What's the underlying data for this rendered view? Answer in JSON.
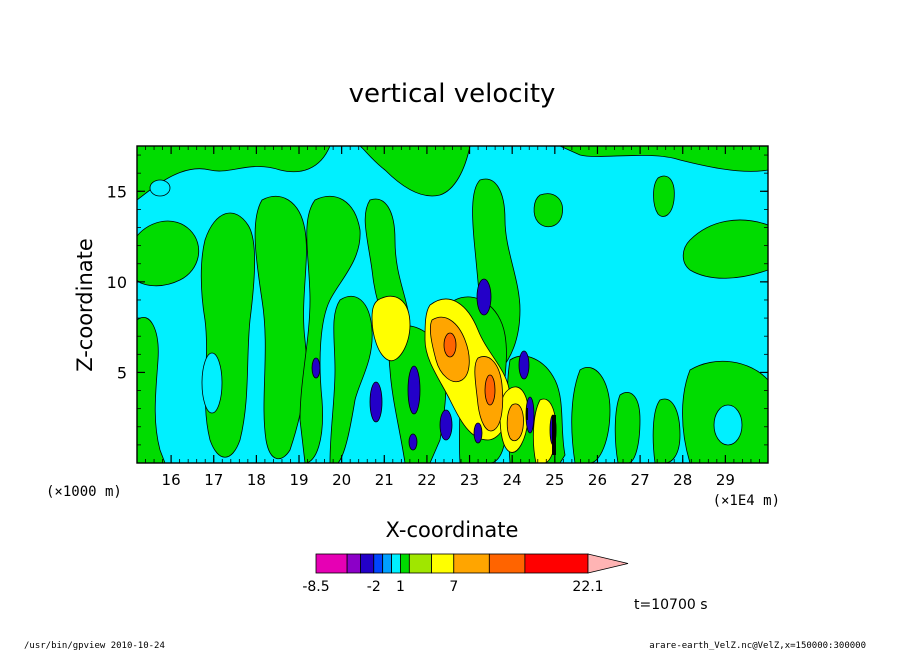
{
  "chart_data": {
    "type": "heatmap",
    "title": "vertical velocity",
    "xlabel": "X-coordinate",
    "ylabel": "Z-coordinate",
    "x_unit_label": "(×1E4 m)",
    "y_unit_label": "(×1000 m)",
    "xlim": [
      15.2,
      30.0
    ],
    "ylim": [
      0.0,
      17.5
    ],
    "x_ticks": [
      16,
      17,
      18,
      19,
      20,
      21,
      22,
      23,
      24,
      25,
      26,
      27,
      28,
      29
    ],
    "y_ticks": [
      5,
      10,
      15
    ],
    "contour_levels": [
      -8.5,
      -5,
      -3.5,
      -2,
      -1,
      0,
      1,
      2,
      4.5,
      7,
      11,
      15,
      22.1
    ],
    "level_colors": [
      "#e600b4",
      "#8c00c8",
      "#2300c8",
      "#0046ff",
      "#00a0ff",
      "#00f0ff",
      "#00dc00",
      "#a0e600",
      "#ffff00",
      "#ffa500",
      "#ff6400",
      "#ff0000",
      "#ff8080",
      "#ffb4b4"
    ],
    "colorbar_labels": [
      "-8.5",
      "-2",
      "1",
      "7",
      "22.1"
    ],
    "colorbar_label_levels": [
      -8.5,
      -2,
      1,
      7,
      22.1
    ],
    "time_label": "t=10700 s"
  },
  "footer": {
    "left": "/usr/bin/gpview   2010-10-24",
    "right": "arare-earth_VelZ.nc@VelZ,x=150000:300000"
  }
}
